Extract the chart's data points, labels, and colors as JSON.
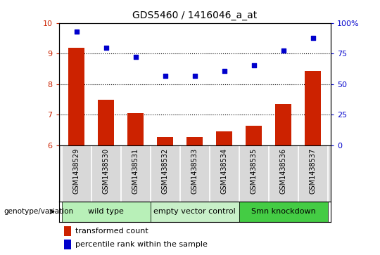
{
  "title": "GDS5460 / 1416046_a_at",
  "samples": [
    "GSM1438529",
    "GSM1438530",
    "GSM1438531",
    "GSM1438532",
    "GSM1438533",
    "GSM1438534",
    "GSM1438535",
    "GSM1438536",
    "GSM1438537"
  ],
  "bar_values": [
    9.2,
    7.5,
    7.05,
    6.28,
    6.28,
    6.45,
    6.65,
    7.35,
    8.42
  ],
  "dot_values": [
    9.72,
    9.2,
    8.88,
    8.27,
    8.27,
    8.42,
    8.62,
    9.1,
    9.5
  ],
  "ylim_left": [
    6,
    10
  ],
  "ylim_right": [
    0,
    100
  ],
  "yticks_left": [
    6,
    7,
    8,
    9,
    10
  ],
  "yticks_right": [
    0,
    25,
    50,
    75,
    100
  ],
  "group_defs": [
    {
      "label": "wild type",
      "indices": [
        0,
        1,
        2
      ],
      "color": "#b8f0b8"
    },
    {
      "label": "empty vector control",
      "indices": [
        3,
        4,
        5
      ],
      "color": "#c8f0c8"
    },
    {
      "label": "Smn knockdown",
      "indices": [
        6,
        7,
        8
      ],
      "color": "#44cc44"
    }
  ],
  "bar_color": "#cc2200",
  "dot_color": "#0000cc",
  "legend_bar_label": "transformed count",
  "legend_dot_label": "percentile rank within the sample",
  "genotype_label": "genotype/variation",
  "bar_width": 0.55,
  "label_bg_color": "#d8d8d8",
  "plot_bg": "#ffffff",
  "fig_bg": "#ffffff"
}
